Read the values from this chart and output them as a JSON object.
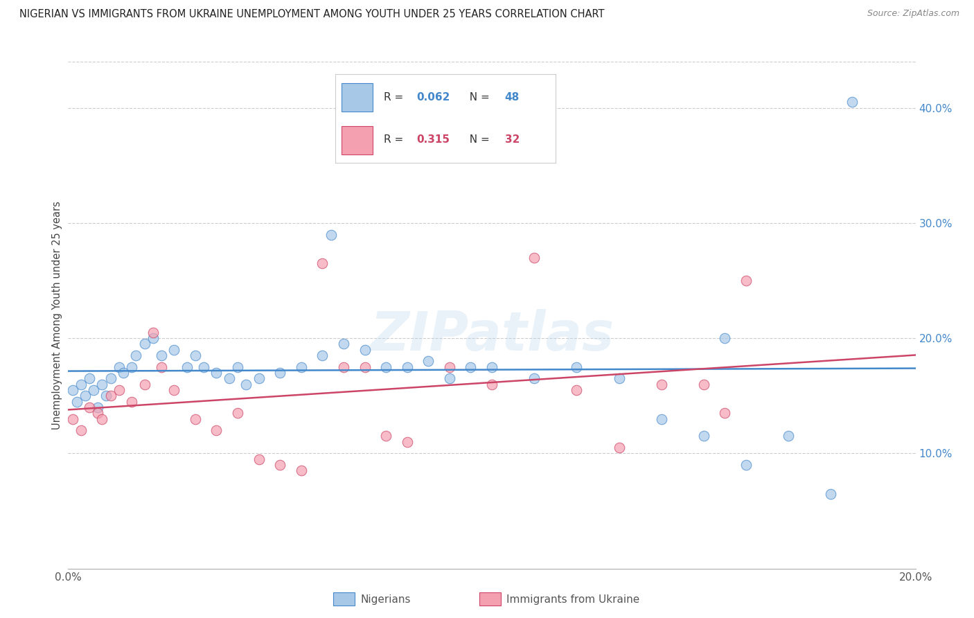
{
  "title": "NIGERIAN VS IMMIGRANTS FROM UKRAINE UNEMPLOYMENT AMONG YOUTH UNDER 25 YEARS CORRELATION CHART",
  "source": "Source: ZipAtlas.com",
  "ylabel": "Unemployment Among Youth under 25 years",
  "r_nigerian": 0.062,
  "n_nigerian": 48,
  "r_ukraine": 0.315,
  "n_ukraine": 32,
  "xmin": 0.0,
  "xmax": 0.2,
  "ymin": 0.0,
  "ymax": 0.44,
  "yticks": [
    0.1,
    0.2,
    0.3,
    0.4
  ],
  "xticks": [
    0.0,
    0.04,
    0.08,
    0.12,
    0.16,
    0.2
  ],
  "ytick_labels": [
    "10.0%",
    "20.0%",
    "30.0%",
    "40.0%"
  ],
  "color_nigerian": "#a8c8e8",
  "color_ukraine": "#f4a0b0",
  "color_nigerian_line": "#4488cc",
  "color_ukraine_line": "#cc4466",
  "legend_label_nigerian": "Nigerians",
  "legend_label_ukraine": "Immigrants from Ukraine",
  "watermark": "ZIPatlas",
  "nigerian_x": [
    0.001,
    0.002,
    0.003,
    0.004,
    0.005,
    0.006,
    0.007,
    0.008,
    0.009,
    0.01,
    0.012,
    0.013,
    0.015,
    0.016,
    0.018,
    0.02,
    0.022,
    0.025,
    0.028,
    0.03,
    0.032,
    0.035,
    0.038,
    0.04,
    0.042,
    0.045,
    0.05,
    0.055,
    0.06,
    0.065,
    0.07,
    0.075,
    0.08,
    0.085,
    0.09,
    0.095,
    0.1,
    0.11,
    0.12,
    0.13,
    0.14,
    0.15,
    0.16,
    0.17,
    0.18,
    0.062,
    0.155,
    0.185
  ],
  "nigerian_y": [
    0.155,
    0.145,
    0.16,
    0.15,
    0.165,
    0.155,
    0.14,
    0.16,
    0.15,
    0.165,
    0.175,
    0.17,
    0.175,
    0.185,
    0.195,
    0.2,
    0.185,
    0.19,
    0.175,
    0.185,
    0.175,
    0.17,
    0.165,
    0.175,
    0.16,
    0.165,
    0.17,
    0.175,
    0.185,
    0.195,
    0.19,
    0.175,
    0.175,
    0.18,
    0.165,
    0.175,
    0.175,
    0.165,
    0.175,
    0.165,
    0.13,
    0.115,
    0.09,
    0.115,
    0.065,
    0.29,
    0.2,
    0.405
  ],
  "ukraine_x": [
    0.001,
    0.003,
    0.005,
    0.007,
    0.008,
    0.01,
    0.012,
    0.015,
    0.018,
    0.02,
    0.022,
    0.025,
    0.03,
    0.035,
    0.04,
    0.045,
    0.05,
    0.055,
    0.06,
    0.065,
    0.07,
    0.075,
    0.08,
    0.09,
    0.1,
    0.11,
    0.12,
    0.13,
    0.15,
    0.155,
    0.16,
    0.14
  ],
  "ukraine_y": [
    0.13,
    0.12,
    0.14,
    0.135,
    0.13,
    0.15,
    0.155,
    0.145,
    0.16,
    0.205,
    0.175,
    0.155,
    0.13,
    0.12,
    0.135,
    0.095,
    0.09,
    0.085,
    0.265,
    0.175,
    0.175,
    0.115,
    0.11,
    0.175,
    0.16,
    0.27,
    0.155,
    0.105,
    0.16,
    0.135,
    0.25,
    0.16
  ]
}
